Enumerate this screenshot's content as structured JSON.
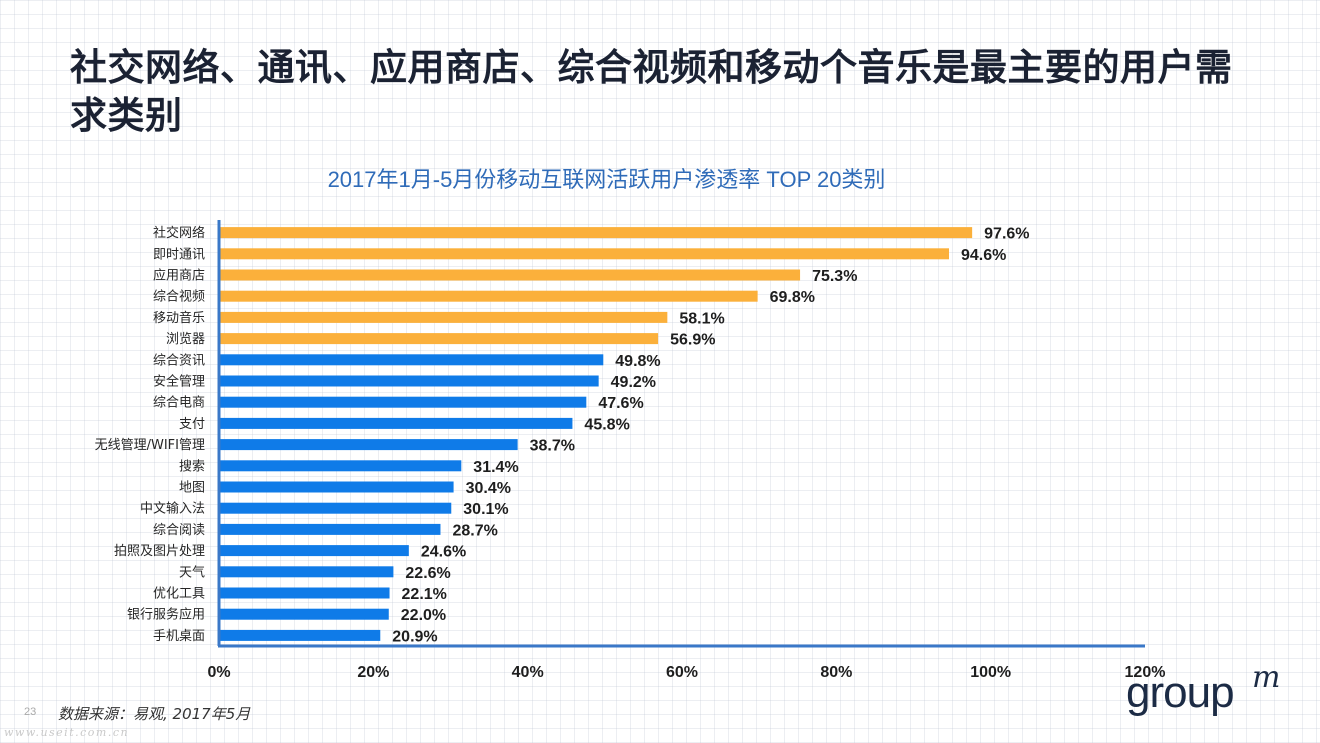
{
  "headline": "社交网络、通讯、应用商店、综合视频和移动个音乐是最主要的用户需求类别",
  "source": "数据来源：易观, 2017年5月",
  "page_number": "23",
  "watermark": "www.useit.com.cn",
  "logo": {
    "word": "group",
    "mark": "m"
  },
  "colors": {
    "highlight": "#fbb03b",
    "standard": "#0f7be8",
    "axis": "#3a78c8",
    "title": "#2f6bb8"
  },
  "chart_data": {
    "type": "bar",
    "orientation": "horizontal",
    "title": "2017年1月-5月份移动互联网活跃用户渗透率 TOP 20类别",
    "categories": [
      "社交网络",
      "即时通讯",
      "应用商店",
      "综合视频",
      "移动音乐",
      "浏览器",
      "综合资讯",
      "安全管理",
      "综合电商",
      "支付",
      "无线管理/WIFI管理",
      "搜索",
      "地图",
      "中文输入法",
      "综合阅读",
      "拍照及图片处理",
      "天气",
      "优化工具",
      "银行服务应用",
      "手机桌面"
    ],
    "values": [
      97.6,
      94.6,
      75.3,
      69.8,
      58.1,
      56.9,
      49.8,
      49.2,
      47.6,
      45.8,
      38.7,
      31.4,
      30.4,
      30.1,
      28.7,
      24.6,
      22.6,
      22.1,
      22.0,
      20.9
    ],
    "value_labels": [
      "97.6%",
      "94.6%",
      "75.3%",
      "69.8%",
      "58.1%",
      "56.9%",
      "49.8%",
      "49.2%",
      "47.6%",
      "45.8%",
      "38.7%",
      "31.4%",
      "30.4%",
      "30.1%",
      "28.7%",
      "24.6%",
      "22.6%",
      "22.1%",
      "22.0%",
      "20.9%"
    ],
    "highlighted_count": 6,
    "xlim": [
      0,
      120
    ],
    "x_ticks": [
      0,
      20,
      40,
      60,
      80,
      100,
      120
    ],
    "x_tick_labels": [
      "0%",
      "20%",
      "40%",
      "60%",
      "80%",
      "100%",
      "120%"
    ],
    "grid": false,
    "legend": "none"
  }
}
